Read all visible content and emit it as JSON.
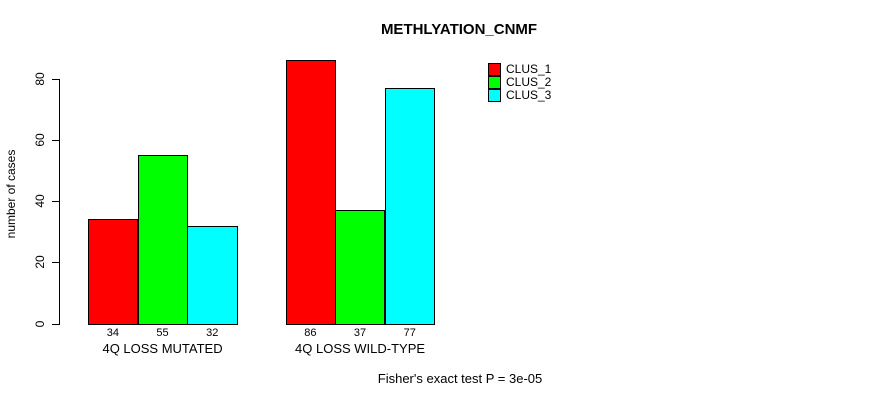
{
  "chart_data": {
    "type": "bar",
    "title": "METHLYATION_CNMF",
    "xlabel": "",
    "ylabel": "number of cases",
    "categories": [
      "4Q LOSS MUTATED",
      "4Q LOSS WILD-TYPE"
    ],
    "series": [
      {
        "name": "CLUS_1",
        "color": "#ff0000",
        "values": [
          34,
          86
        ]
      },
      {
        "name": "CLUS_2",
        "color": "#00ff00",
        "values": [
          55,
          37
        ]
      },
      {
        "name": "CLUS_3",
        "color": "#00ffff",
        "values": [
          32,
          77
        ]
      }
    ],
    "bar_value_labels": [
      [
        34,
        55,
        32
      ],
      [
        86,
        37,
        77
      ]
    ],
    "yticks": [
      0,
      20,
      40,
      60,
      80
    ],
    "ylim": [
      0,
      86
    ],
    "grid": false,
    "legend_position": "top-right",
    "legend_entries": [
      "CLUS_1",
      "CLUS_2",
      "CLUS_3"
    ],
    "annotation": "Fisher's exact test P = 3e-05"
  },
  "colors": {
    "clus_1": "#ff0000",
    "clus_2": "#00ff00",
    "clus_3": "#00ffff",
    "axis": "#000000",
    "background": "#ffffff"
  }
}
